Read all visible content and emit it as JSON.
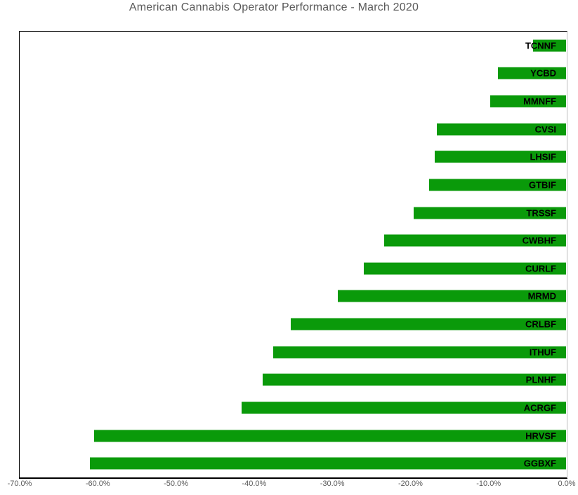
{
  "title": "American Cannabis Operator Performance - March 2020",
  "colors": {
    "bar": "#0a9a0a",
    "title_text": "#595959",
    "axis_text": "#595959",
    "bar_label_text": "#000000",
    "plot_border": "#000000",
    "axis_line_right": "#bfbfbf",
    "background": "#ffffff"
  },
  "chart_data": {
    "type": "bar",
    "orientation": "horizontal",
    "title": "American Cannabis Operator Performance - March 2020",
    "categories": [
      "TCNNF",
      "YCBD",
      "MMNFF",
      "CVSI",
      "LHSIF",
      "GTBIF",
      "TRSSF",
      "CWBHF",
      "CURLF",
      "MRMD",
      "CRLBF",
      "ITHUF",
      "PLNHF",
      "ACRGF",
      "HRVSF",
      "GGBXF"
    ],
    "values": [
      -4.2,
      -8.7,
      -9.7,
      -16.5,
      -16.8,
      -17.5,
      -19.5,
      -23.3,
      -25.9,
      -29.2,
      -35.2,
      -37.5,
      -38.8,
      -41.5,
      -60.4,
      -60.9
    ],
    "value_unit": "percent",
    "xlabel": "",
    "ylabel": "",
    "xlim": [
      -70,
      0
    ],
    "x_tick_values": [
      -70,
      -60,
      -50,
      -40,
      -30,
      -20,
      -10,
      0
    ],
    "x_ticks": [
      "-70.0%",
      "-60.0%",
      "-50.0%",
      "-40.0%",
      "-30.0%",
      "-20.0%",
      "-10.0%",
      "0.0%"
    ],
    "grid": false,
    "legend": false,
    "bar_color": "#0a9a0a",
    "category_label_position": "inside-end-right"
  }
}
